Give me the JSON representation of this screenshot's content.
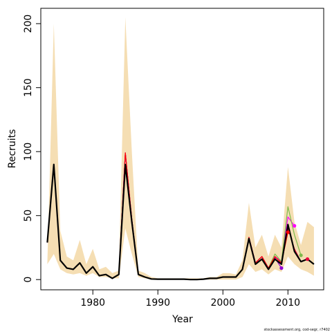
{
  "chart_data": {
    "type": "line",
    "xlabel": "Year",
    "ylabel": "Recruits",
    "xlim": [
      1972,
      2015.5
    ],
    "ylim": [
      -8,
      212
    ],
    "xticks": [
      1980,
      1990,
      2000,
      2010
    ],
    "yticks": [
      0,
      50,
      100,
      150,
      200
    ],
    "credit": "stockassessment.org, cod-segr, r7402",
    "colors": {
      "band": "#f5deb3",
      "main": "#000000",
      "retro_1": "#e8003d",
      "retro_2": "#ff00ff",
      "retro_3": "#7cba4a",
      "retro_4": "#9400d3",
      "retro_5": "#ff0000"
    },
    "years": [
      1973,
      1974,
      1975,
      1976,
      1977,
      1978,
      1979,
      1980,
      1981,
      1982,
      1983,
      1984,
      1985,
      1986,
      1987,
      1988,
      1989,
      1990,
      1991,
      1992,
      1993,
      1994,
      1995,
      1996,
      1997,
      1998,
      1999,
      2000,
      2001,
      2002,
      2003,
      2004,
      2005,
      2006,
      2007,
      2008,
      2009,
      2010,
      2011,
      2012,
      2013,
      2014
    ],
    "band_upper": [
      12,
      200,
      38,
      18,
      15,
      31,
      12,
      24,
      8,
      10,
      5,
      7,
      205,
      100,
      7,
      5,
      2,
      1,
      1,
      1,
      1,
      1,
      1,
      1,
      1,
      2,
      2,
      5,
      5,
      4,
      15,
      60,
      25,
      35,
      18,
      35,
      25,
      88,
      45,
      27,
      45,
      41
    ],
    "band_lower": [
      12,
      20,
      8,
      5,
      4,
      5,
      3,
      5,
      2,
      2,
      1,
      1,
      40,
      20,
      2,
      1,
      0,
      0,
      0,
      0,
      0,
      0,
      0,
      0,
      0,
      0,
      0,
      0,
      0,
      0,
      2,
      12,
      6,
      8,
      4,
      8,
      6,
      18,
      12,
      8,
      6,
      3
    ],
    "series": [
      {
        "key": "main",
        "values": [
          29,
          90,
          15,
          9,
          8,
          13,
          5,
          10,
          3,
          4,
          1,
          4,
          90,
          45,
          4,
          2,
          0.5,
          0.3,
          0.3,
          0.3,
          0.3,
          0.3,
          0,
          0,
          0.3,
          1,
          1,
          2,
          2,
          2,
          8,
          32,
          12,
          16,
          8,
          16,
          12,
          43,
          22,
          14,
          16,
          12
        ]
      },
      {
        "key": "retro_1",
        "values": [
          29,
          90,
          15,
          9,
          8,
          13,
          5,
          10,
          3,
          4,
          1,
          4,
          99,
          47,
          4,
          2,
          0.5,
          0.3,
          0.3,
          0.3,
          0.3,
          0.3,
          0,
          0,
          0.3,
          1,
          1,
          2,
          2,
          2,
          8,
          33,
          13,
          18,
          9,
          18,
          13,
          40,
          24,
          14,
          16,
          null
        ]
      },
      {
        "key": "retro_2",
        "values": [
          29,
          90,
          15,
          9,
          8,
          13,
          5,
          10,
          3,
          4,
          1,
          4,
          99,
          47,
          4,
          2,
          0.5,
          0.3,
          0.3,
          0.3,
          0.3,
          0.3,
          0,
          0,
          0.3,
          1,
          1,
          2,
          2,
          2,
          8,
          33,
          13,
          18,
          9,
          18,
          14,
          49,
          42,
          null,
          null,
          null
        ]
      },
      {
        "key": "retro_3",
        "values": [
          29,
          90,
          15,
          9,
          8,
          13,
          5,
          10,
          3,
          4,
          1,
          4,
          99,
          47,
          4,
          2,
          0.5,
          0.3,
          0.3,
          0.3,
          0.3,
          0.3,
          0,
          0,
          0.3,
          1,
          1,
          2,
          2,
          2,
          8,
          33,
          13,
          18,
          9,
          20,
          14,
          57,
          35,
          19,
          null,
          null
        ]
      },
      {
        "key": "retro_4",
        "values": [
          29,
          90,
          15,
          9,
          8,
          13,
          5,
          10,
          3,
          4,
          1,
          4,
          99,
          47,
          4,
          2,
          0.5,
          0.3,
          0.3,
          0.3,
          0.3,
          0.3,
          0,
          0,
          0.3,
          1,
          1,
          2,
          2,
          2,
          8,
          33,
          13,
          18,
          9,
          17,
          9,
          null,
          null,
          null,
          null,
          null
        ]
      },
      {
        "key": "retro_5",
        "values": [
          29,
          90,
          15,
          9,
          8,
          13,
          5,
          10,
          3,
          4,
          1,
          4,
          99,
          47,
          4,
          2,
          0.5,
          0.3,
          0.3,
          0.3,
          0.3,
          0.3,
          0,
          0,
          0.3,
          1,
          1,
          2,
          2,
          2,
          8,
          33,
          13,
          18,
          9,
          18,
          13,
          37,
          null,
          null,
          null,
          null
        ]
      }
    ],
    "end_points": [
      {
        "key": "retro_4",
        "x": 2009,
        "y": 9
      },
      {
        "key": "retro_5",
        "x": 2010,
        "y": 37
      },
      {
        "key": "retro_2",
        "x": 2011,
        "y": 42
      },
      {
        "key": "retro_3",
        "x": 2012,
        "y": 19
      },
      {
        "key": "retro_1",
        "x": 2013,
        "y": 16
      }
    ]
  }
}
